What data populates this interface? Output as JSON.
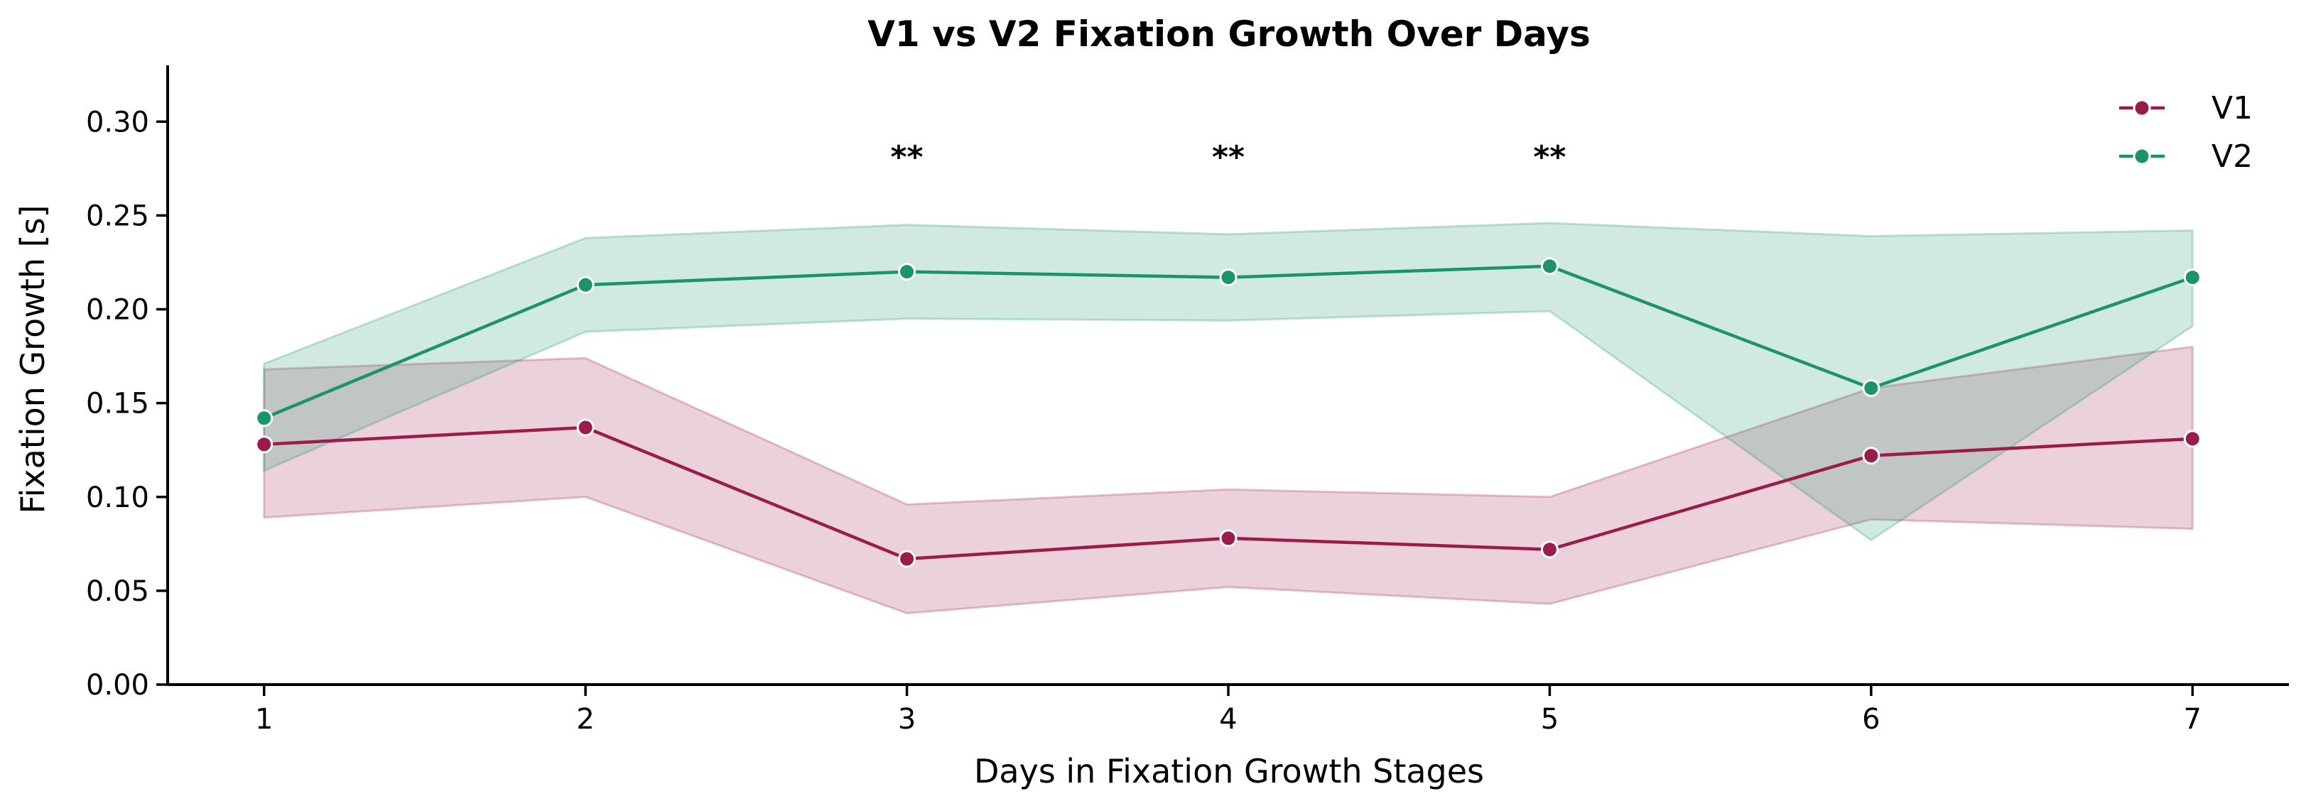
{
  "chart_data": {
    "type": "line",
    "title": "V1 vs V2 Fixation Growth Over Days",
    "xlabel": "Days in Fixation Growth Stages",
    "ylabel": "Fixation Growth [s]",
    "x": [
      1,
      2,
      3,
      4,
      5,
      6,
      7
    ],
    "xlim": [
      0.7,
      7.3
    ],
    "ylim": [
      0,
      0.33
    ],
    "xticks": [
      "1",
      "2",
      "3",
      "4",
      "5",
      "6",
      "7"
    ],
    "yticks": [
      "0.00",
      "0.05",
      "0.10",
      "0.15",
      "0.20",
      "0.25",
      "0.30"
    ],
    "ytick_values": [
      0,
      0.05,
      0.1,
      0.15,
      0.2,
      0.25,
      0.3
    ],
    "grid": false,
    "legend_position": "top-right",
    "series": [
      {
        "name": "V1",
        "color": "#9b1b4b",
        "values": [
          0.128,
          0.137,
          0.067,
          0.078,
          0.072,
          0.122,
          0.131
        ],
        "ci_lower": [
          0.089,
          0.1,
          0.038,
          0.052,
          0.043,
          0.088,
          0.083
        ],
        "ci_upper": [
          0.168,
          0.174,
          0.096,
          0.104,
          0.1,
          0.158,
          0.18
        ]
      },
      {
        "name": "V2",
        "color": "#1b9467",
        "values": [
          0.142,
          0.213,
          0.22,
          0.217,
          0.223,
          0.158,
          0.217
        ],
        "ci_lower": [
          0.114,
          0.188,
          0.195,
          0.194,
          0.199,
          0.077,
          0.191
        ],
        "ci_upper": [
          0.171,
          0.238,
          0.245,
          0.24,
          0.246,
          0.239,
          0.242
        ]
      }
    ],
    "annotations": [
      {
        "x": 3,
        "y": 0.28,
        "text": "**"
      },
      {
        "x": 4,
        "y": 0.28,
        "text": "**"
      },
      {
        "x": 5,
        "y": 0.28,
        "text": "**"
      }
    ]
  }
}
